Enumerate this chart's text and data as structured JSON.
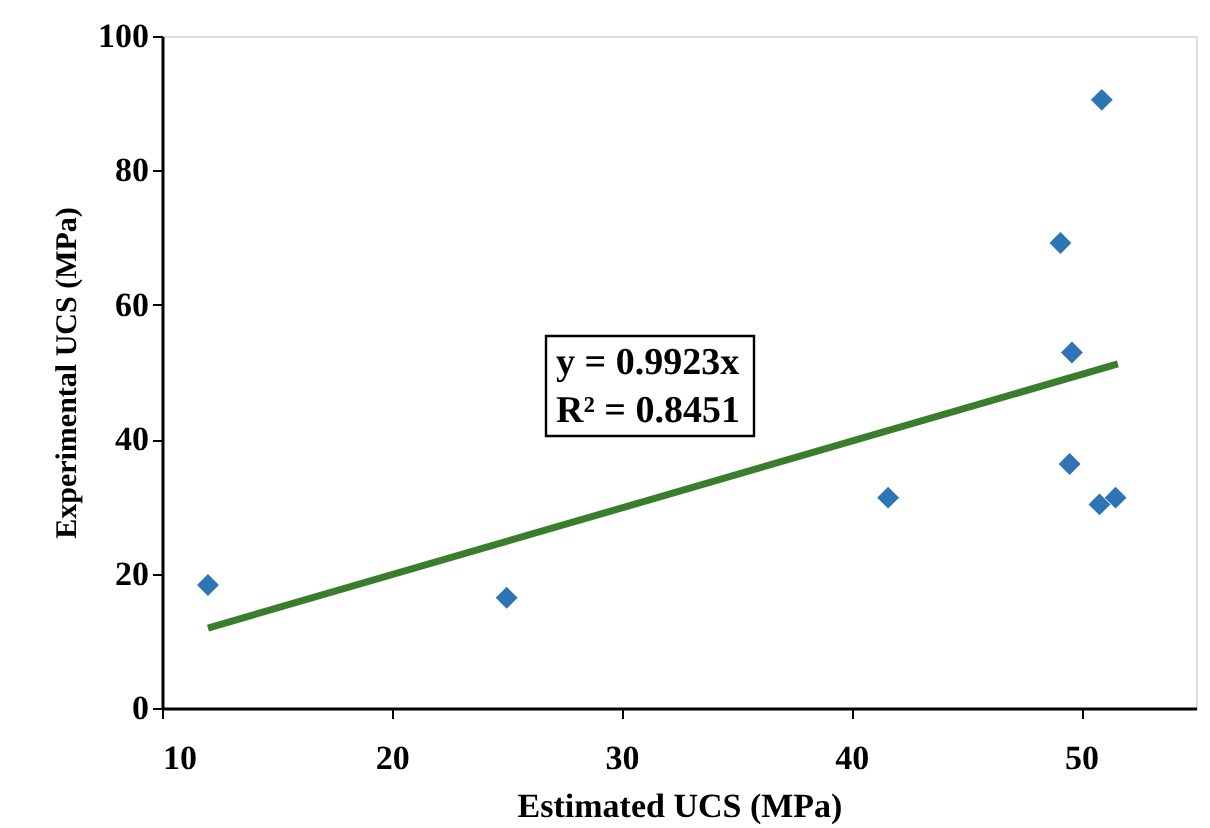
{
  "chart_data": {
    "type": "scatter",
    "xlabel": "Estimated UCS (MPa)",
    "ylabel": "Experimental UCS (MPa)",
    "xlim": [
      10,
      55
    ],
    "xticks": [
      10,
      20,
      30,
      40,
      50
    ],
    "ylim": [
      0,
      100
    ],
    "yticks": [
      0,
      20,
      40,
      60,
      80,
      100
    ],
    "grid": false,
    "series": [
      {
        "color": "#2e75b6",
        "marker": "diamond",
        "x": [
          12,
          25.0,
          41.6,
          49.1,
          49.6,
          49.5,
          50.9,
          50.8,
          51.5
        ],
        "values": [
          18.3,
          16.4,
          31.3,
          69.2,
          52.9,
          36.3,
          90.5,
          30.3,
          31.3
        ]
      },
      {
        "type": "line",
        "color": "#3a7d2c",
        "x": [
          12,
          51.6
        ],
        "values": [
          11.9,
          51.2
        ]
      }
    ],
    "annotations": [
      "y = 0.9923x",
      "R² = 0.8451"
    ]
  }
}
